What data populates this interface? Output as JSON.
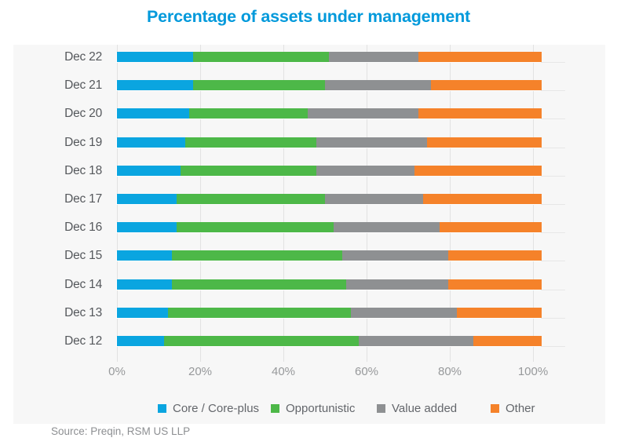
{
  "title": "Percentage of assets under management",
  "source": "Source: Preqin, RSM US LLP",
  "colors": {
    "title_blue": "#0099db",
    "core": "#0aa5e0",
    "opportunistic": "#4db848",
    "value_added": "#8e9092",
    "other": "#f5822a",
    "panel_bg": "#f7f7f7",
    "gridline": "#e2e2e2"
  },
  "chart_data": {
    "type": "bar",
    "orientation": "horizontal",
    "stacked": true,
    "title": "Percentage of assets under management",
    "xlabel": "",
    "ylabel": "",
    "xlim": [
      0,
      100
    ],
    "unit": "%",
    "grid": "vertical",
    "legend_position": "bottom",
    "categories": [
      "Dec 22",
      "Dec 21",
      "Dec 20",
      "Dec 19",
      "Dec 18",
      "Dec 17",
      "Dec 16",
      "Dec 15",
      "Dec 14",
      "Dec 13",
      "Dec 12"
    ],
    "series": [
      {
        "name": "Core / Core-plus",
        "color": "#0aa5e0",
        "values": [
          18,
          18,
          17,
          16,
          15,
          14,
          14,
          13,
          13,
          12,
          11
        ]
      },
      {
        "name": "Opportunistic",
        "color": "#4db848",
        "values": [
          32,
          31,
          28,
          31,
          32,
          35,
          37,
          40,
          41,
          43,
          46
        ]
      },
      {
        "name": "Value added",
        "color": "#8e9092",
        "values": [
          21,
          25,
          26,
          26,
          23,
          23,
          25,
          25,
          24,
          25,
          27
        ]
      },
      {
        "name": "Other",
        "color": "#f5822a",
        "values": [
          29,
          26,
          29,
          27,
          30,
          28,
          24,
          22,
          22,
          20,
          16
        ]
      }
    ],
    "x_ticks": [
      {
        "value": 0,
        "label": "0%"
      },
      {
        "value": 20,
        "label": "20%"
      },
      {
        "value": 40,
        "label": "40%"
      },
      {
        "value": 60,
        "label": "60%"
      },
      {
        "value": 80,
        "label": "80%"
      },
      {
        "value": 100,
        "label": "100%"
      }
    ]
  }
}
